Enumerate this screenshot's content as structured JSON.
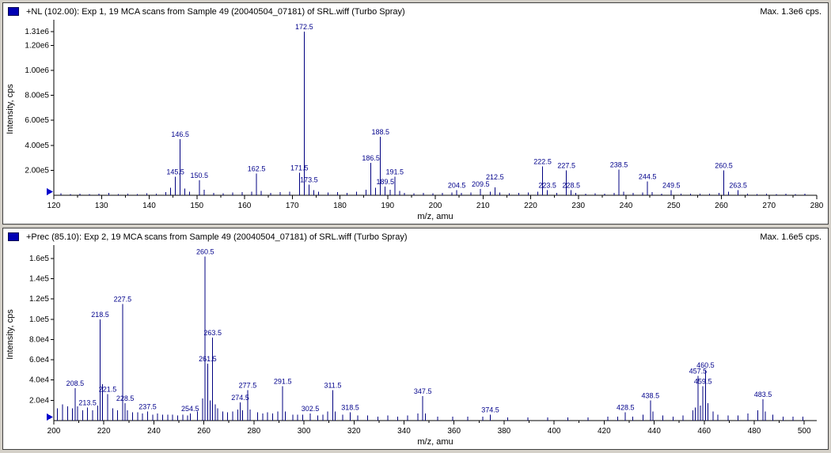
{
  "colors": {
    "stick": "#000080",
    "peak_label": "#00008b",
    "axis": "#000000",
    "marker": "#0000cc",
    "icon": "#0000b4",
    "panel_bg": "#ffffff",
    "window_bg": "#d4d0c8"
  },
  "chart_data": [
    {
      "type": "bar",
      "subtype": "mass-spectrum",
      "title": "+NL (102.00): Exp 1, 19 MCA scans from Sample 49 (20040504_07181) of SRL.wiff (Turbo Spray)",
      "max_annotation": "Max. 1.3e6 cps.",
      "xlabel": "m/z, amu",
      "ylabel": "Intensity, cps",
      "xlim": [
        120,
        280
      ],
      "ylim": [
        0,
        1380000
      ],
      "grid": false,
      "x_ticks": [
        120,
        130,
        140,
        150,
        160,
        170,
        180,
        190,
        200,
        210,
        220,
        230,
        240,
        250,
        260,
        270,
        280
      ],
      "y_ticks": [
        {
          "label": "1.31e6",
          "value": 1310000
        },
        {
          "label": "1.20e6",
          "value": 1200000
        },
        {
          "label": "1.00e6",
          "value": 1000000
        },
        {
          "label": "8.00e5",
          "value": 800000
        },
        {
          "label": "6.00e5",
          "value": 600000
        },
        {
          "label": "4.00e5",
          "value": 400000
        },
        {
          "label": "2.00e5",
          "value": 200000
        }
      ],
      "peaks": [
        {
          "mz": 121.5,
          "intensity": 15000
        },
        {
          "mz": 123.5,
          "intensity": 10000
        },
        {
          "mz": 125.5,
          "intensity": 12000
        },
        {
          "mz": 127.5,
          "intensity": 10000
        },
        {
          "mz": 129.5,
          "intensity": 14000
        },
        {
          "mz": 131.5,
          "intensity": 18000
        },
        {
          "mz": 133.5,
          "intensity": 10000
        },
        {
          "mz": 135.5,
          "intensity": 12000
        },
        {
          "mz": 137.5,
          "intensity": 10000
        },
        {
          "mz": 139.5,
          "intensity": 16000
        },
        {
          "mz": 141.5,
          "intensity": 12000
        },
        {
          "mz": 143.5,
          "intensity": 25000
        },
        {
          "mz": 144.5,
          "intensity": 60000
        },
        {
          "mz": 145.5,
          "intensity": 150000,
          "label": "145.5"
        },
        {
          "mz": 146.5,
          "intensity": 450000,
          "label": "146.5"
        },
        {
          "mz": 147.5,
          "intensity": 55000
        },
        {
          "mz": 148.5,
          "intensity": 30000
        },
        {
          "mz": 150.5,
          "intensity": 120000,
          "label": "150.5"
        },
        {
          "mz": 151.5,
          "intensity": 45000
        },
        {
          "mz": 153.5,
          "intensity": 20000
        },
        {
          "mz": 155.5,
          "intensity": 15000
        },
        {
          "mz": 157.5,
          "intensity": 22000
        },
        {
          "mz": 159.5,
          "intensity": 25000
        },
        {
          "mz": 161.5,
          "intensity": 30000
        },
        {
          "mz": 162.5,
          "intensity": 175000,
          "label": "162.5"
        },
        {
          "mz": 163.5,
          "intensity": 35000
        },
        {
          "mz": 165.5,
          "intensity": 20000
        },
        {
          "mz": 167.5,
          "intensity": 25000
        },
        {
          "mz": 169.5,
          "intensity": 30000
        },
        {
          "mz": 171.5,
          "intensity": 180000,
          "label": "171.5"
        },
        {
          "mz": 172.5,
          "intensity": 1310000,
          "label": "172.5"
        },
        {
          "mz": 173.5,
          "intensity": 85000,
          "label": "173.5"
        },
        {
          "mz": 174.5,
          "intensity": 40000
        },
        {
          "mz": 175.5,
          "intensity": 30000
        },
        {
          "mz": 177.5,
          "intensity": 22000
        },
        {
          "mz": 179.5,
          "intensity": 25000
        },
        {
          "mz": 181.5,
          "intensity": 20000
        },
        {
          "mz": 183.5,
          "intensity": 28000
        },
        {
          "mz": 185.5,
          "intensity": 45000
        },
        {
          "mz": 186.5,
          "intensity": 260000,
          "label": "186.5"
        },
        {
          "mz": 187.5,
          "intensity": 60000
        },
        {
          "mz": 188.5,
          "intensity": 470000,
          "label": "188.5"
        },
        {
          "mz": 189.5,
          "intensity": 70000,
          "label": "189.5"
        },
        {
          "mz": 190.5,
          "intensity": 45000
        },
        {
          "mz": 191.5,
          "intensity": 150000,
          "label": "191.5"
        },
        {
          "mz": 192.5,
          "intensity": 35000
        },
        {
          "mz": 193.5,
          "intensity": 20000
        },
        {
          "mz": 195.5,
          "intensity": 16000
        },
        {
          "mz": 197.5,
          "intensity": 20000
        },
        {
          "mz": 199.5,
          "intensity": 15000
        },
        {
          "mz": 201.5,
          "intensity": 18000
        },
        {
          "mz": 203.5,
          "intensity": 22000
        },
        {
          "mz": 204.5,
          "intensity": 42000,
          "label": "204.5"
        },
        {
          "mz": 205.5,
          "intensity": 18000
        },
        {
          "mz": 207.5,
          "intensity": 22000
        },
        {
          "mz": 209.5,
          "intensity": 50000,
          "label": "209.5"
        },
        {
          "mz": 211.5,
          "intensity": 28000
        },
        {
          "mz": 212.5,
          "intensity": 62000,
          "label": "212.5"
        },
        {
          "mz": 213.5,
          "intensity": 22000
        },
        {
          "mz": 215.5,
          "intensity": 15000
        },
        {
          "mz": 217.5,
          "intensity": 18000
        },
        {
          "mz": 219.5,
          "intensity": 22000
        },
        {
          "mz": 221.5,
          "intensity": 30000
        },
        {
          "mz": 222.5,
          "intensity": 230000,
          "label": "222.5"
        },
        {
          "mz": 223.5,
          "intensity": 40000,
          "label": "223.5"
        },
        {
          "mz": 225.5,
          "intensity": 18000
        },
        {
          "mz": 227.5,
          "intensity": 200000,
          "label": "227.5"
        },
        {
          "mz": 228.5,
          "intensity": 42000,
          "label": "228.5"
        },
        {
          "mz": 229.5,
          "intensity": 18000
        },
        {
          "mz": 231.5,
          "intensity": 14000
        },
        {
          "mz": 233.5,
          "intensity": 16000
        },
        {
          "mz": 235.5,
          "intensity": 14000
        },
        {
          "mz": 237.5,
          "intensity": 18000
        },
        {
          "mz": 238.5,
          "intensity": 205000,
          "label": "238.5"
        },
        {
          "mz": 239.5,
          "intensity": 28000
        },
        {
          "mz": 241.5,
          "intensity": 18000
        },
        {
          "mz": 243.5,
          "intensity": 22000
        },
        {
          "mz": 244.5,
          "intensity": 110000,
          "label": "244.5"
        },
        {
          "mz": 245.5,
          "intensity": 24000
        },
        {
          "mz": 247.5,
          "intensity": 14000
        },
        {
          "mz": 249.5,
          "intensity": 40000,
          "label": "249.5"
        },
        {
          "mz": 251.5,
          "intensity": 14000
        },
        {
          "mz": 253.5,
          "intensity": 12000
        },
        {
          "mz": 255.5,
          "intensity": 14000
        },
        {
          "mz": 257.5,
          "intensity": 12000
        },
        {
          "mz": 259.5,
          "intensity": 20000
        },
        {
          "mz": 260.5,
          "intensity": 200000,
          "label": "260.5"
        },
        {
          "mz": 261.5,
          "intensity": 28000
        },
        {
          "mz": 263.5,
          "intensity": 42000,
          "label": "263.5"
        },
        {
          "mz": 265.5,
          "intensity": 12000
        },
        {
          "mz": 267.5,
          "intensity": 10000
        },
        {
          "mz": 269.5,
          "intensity": 12000
        },
        {
          "mz": 271.5,
          "intensity": 10000
        },
        {
          "mz": 273.5,
          "intensity": 12000
        },
        {
          "mz": 275.5,
          "intensity": 10000
        },
        {
          "mz": 277.5,
          "intensity": 12000
        }
      ]
    },
    {
      "type": "bar",
      "subtype": "mass-spectrum",
      "title": "+Prec (85.10): Exp 2, 19 MCA scans from Sample 49 (20040504_07181) of SRL.wiff (Turbo Spray)",
      "max_annotation": "Max. 1.6e5 cps.",
      "xlabel": "m/z, amu",
      "ylabel": "Intensity, cps",
      "xlim": [
        200,
        505
      ],
      "ylim": [
        0,
        170000
      ],
      "grid": false,
      "x_ticks": [
        200,
        220,
        240,
        260,
        280,
        300,
        320,
        340,
        360,
        380,
        400,
        420,
        440,
        460,
        480,
        500
      ],
      "y_ticks": [
        {
          "label": "1.6e5",
          "value": 160000
        },
        {
          "label": "1.4e5",
          "value": 140000
        },
        {
          "label": "1.2e5",
          "value": 120000
        },
        {
          "label": "1.0e5",
          "value": 100000
        },
        {
          "label": "8.0e4",
          "value": 80000
        },
        {
          "label": "6.0e4",
          "value": 60000
        },
        {
          "label": "4.0e4",
          "value": 40000
        },
        {
          "label": "2.0e4",
          "value": 20000
        }
      ],
      "peaks": [
        {
          "mz": 201.5,
          "intensity": 12000
        },
        {
          "mz": 203.5,
          "intensity": 16000
        },
        {
          "mz": 205.5,
          "intensity": 14000
        },
        {
          "mz": 207.5,
          "intensity": 12000
        },
        {
          "mz": 208.5,
          "intensity": 32000,
          "label": "208.5"
        },
        {
          "mz": 209.5,
          "intensity": 14000
        },
        {
          "mz": 211.5,
          "intensity": 10000
        },
        {
          "mz": 213.5,
          "intensity": 13000,
          "label": "213.5"
        },
        {
          "mz": 215.5,
          "intensity": 10000
        },
        {
          "mz": 217.5,
          "intensity": 15000
        },
        {
          "mz": 218.5,
          "intensity": 100000,
          "label": "218.5"
        },
        {
          "mz": 219.5,
          "intensity": 36000
        },
        {
          "mz": 221.5,
          "intensity": 26000,
          "label": "221.5"
        },
        {
          "mz": 223.5,
          "intensity": 12000
        },
        {
          "mz": 225.5,
          "intensity": 10000
        },
        {
          "mz": 227.5,
          "intensity": 115000,
          "label": "227.5"
        },
        {
          "mz": 228.5,
          "intensity": 17000,
          "label": "228.5"
        },
        {
          "mz": 229.5,
          "intensity": 10000
        },
        {
          "mz": 231.5,
          "intensity": 8000
        },
        {
          "mz": 233.5,
          "intensity": 8000
        },
        {
          "mz": 235.5,
          "intensity": 7000
        },
        {
          "mz": 237.5,
          "intensity": 9000,
          "label": "237.5"
        },
        {
          "mz": 239.5,
          "intensity": 6000
        },
        {
          "mz": 241.5,
          "intensity": 7000
        },
        {
          "mz": 243.5,
          "intensity": 6000
        },
        {
          "mz": 245.5,
          "intensity": 6000
        },
        {
          "mz": 247.5,
          "intensity": 6000
        },
        {
          "mz": 249.5,
          "intensity": 5000
        },
        {
          "mz": 251.5,
          "intensity": 6000
        },
        {
          "mz": 253.5,
          "intensity": 5000
        },
        {
          "mz": 254.5,
          "intensity": 7000,
          "label": "254.5"
        },
        {
          "mz": 257.5,
          "intensity": 9000
        },
        {
          "mz": 259.5,
          "intensity": 22000
        },
        {
          "mz": 260.5,
          "intensity": 162000,
          "label": "260.5"
        },
        {
          "mz": 261.5,
          "intensity": 56000,
          "label": "261.5"
        },
        {
          "mz": 262.5,
          "intensity": 20000
        },
        {
          "mz": 263.5,
          "intensity": 82000,
          "label": "263.5"
        },
        {
          "mz": 264.5,
          "intensity": 16000
        },
        {
          "mz": 265.5,
          "intensity": 12000
        },
        {
          "mz": 267.5,
          "intensity": 9000
        },
        {
          "mz": 269.5,
          "intensity": 8000
        },
        {
          "mz": 271.5,
          "intensity": 9000
        },
        {
          "mz": 273.5,
          "intensity": 11000
        },
        {
          "mz": 274.5,
          "intensity": 18000,
          "label": "274.5"
        },
        {
          "mz": 275.5,
          "intensity": 10000
        },
        {
          "mz": 277.5,
          "intensity": 30000,
          "label": "277.5"
        },
        {
          "mz": 278.5,
          "intensity": 11000
        },
        {
          "mz": 281.5,
          "intensity": 8000
        },
        {
          "mz": 283.5,
          "intensity": 7000
        },
        {
          "mz": 285.5,
          "intensity": 8000
        },
        {
          "mz": 287.5,
          "intensity": 7000
        },
        {
          "mz": 289.5,
          "intensity": 9000
        },
        {
          "mz": 291.5,
          "intensity": 34000,
          "label": "291.5"
        },
        {
          "mz": 292.5,
          "intensity": 9000
        },
        {
          "mz": 295.5,
          "intensity": 6000
        },
        {
          "mz": 297.5,
          "intensity": 6000
        },
        {
          "mz": 299.5,
          "intensity": 6000
        },
        {
          "mz": 302.5,
          "intensity": 7000,
          "label": "302.5"
        },
        {
          "mz": 305.5,
          "intensity": 5000
        },
        {
          "mz": 307.5,
          "intensity": 6000
        },
        {
          "mz": 309.5,
          "intensity": 9000
        },
        {
          "mz": 311.5,
          "intensity": 30000,
          "label": "311.5"
        },
        {
          "mz": 312.5,
          "intensity": 9000
        },
        {
          "mz": 315.5,
          "intensity": 6000
        },
        {
          "mz": 318.5,
          "intensity": 8000,
          "label": "318.5"
        },
        {
          "mz": 321.5,
          "intensity": 5000
        },
        {
          "mz": 325.5,
          "intensity": 5000
        },
        {
          "mz": 329.5,
          "intensity": 4000
        },
        {
          "mz": 333.5,
          "intensity": 5000
        },
        {
          "mz": 337.5,
          "intensity": 4000
        },
        {
          "mz": 341.5,
          "intensity": 5000
        },
        {
          "mz": 345.5,
          "intensity": 7000
        },
        {
          "mz": 347.5,
          "intensity": 24000,
          "label": "347.5"
        },
        {
          "mz": 348.5,
          "intensity": 7000
        },
        {
          "mz": 353.5,
          "intensity": 4000
        },
        {
          "mz": 359.5,
          "intensity": 4000
        },
        {
          "mz": 365.5,
          "intensity": 4000
        },
        {
          "mz": 371.5,
          "intensity": 4000
        },
        {
          "mz": 374.5,
          "intensity": 6000,
          "label": "374.5"
        },
        {
          "mz": 381.5,
          "intensity": 3000
        },
        {
          "mz": 389.5,
          "intensity": 3000
        },
        {
          "mz": 397.5,
          "intensity": 3000
        },
        {
          "mz": 405.5,
          "intensity": 3000
        },
        {
          "mz": 413.5,
          "intensity": 3000
        },
        {
          "mz": 421.5,
          "intensity": 4000
        },
        {
          "mz": 425.5,
          "intensity": 4000
        },
        {
          "mz": 428.5,
          "intensity": 8000,
          "label": "428.5"
        },
        {
          "mz": 431.5,
          "intensity": 4000
        },
        {
          "mz": 435.5,
          "intensity": 6000
        },
        {
          "mz": 438.5,
          "intensity": 20000,
          "label": "438.5"
        },
        {
          "mz": 439.5,
          "intensity": 9000
        },
        {
          "mz": 443.5,
          "intensity": 5000
        },
        {
          "mz": 447.5,
          "intensity": 4000
        },
        {
          "mz": 451.5,
          "intensity": 5000
        },
        {
          "mz": 455.5,
          "intensity": 10000
        },
        {
          "mz": 456.5,
          "intensity": 13000
        },
        {
          "mz": 457.5,
          "intensity": 44000,
          "label": "457.5"
        },
        {
          "mz": 458.5,
          "intensity": 15000
        },
        {
          "mz": 459.5,
          "intensity": 34000,
          "label": "459.5"
        },
        {
          "mz": 460.5,
          "intensity": 50000,
          "label": "460.5"
        },
        {
          "mz": 461.5,
          "intensity": 17000
        },
        {
          "mz": 463.5,
          "intensity": 9000
        },
        {
          "mz": 465.5,
          "intensity": 6000
        },
        {
          "mz": 469.5,
          "intensity": 5000
        },
        {
          "mz": 473.5,
          "intensity": 5000
        },
        {
          "mz": 477.5,
          "intensity": 7000
        },
        {
          "mz": 481.5,
          "intensity": 10000
        },
        {
          "mz": 483.5,
          "intensity": 21000,
          "label": "483.5"
        },
        {
          "mz": 484.5,
          "intensity": 9000
        },
        {
          "mz": 487.5,
          "intensity": 6000
        },
        {
          "mz": 491.5,
          "intensity": 4000
        },
        {
          "mz": 495.5,
          "intensity": 4000
        },
        {
          "mz": 499.5,
          "intensity": 4000
        }
      ]
    }
  ]
}
